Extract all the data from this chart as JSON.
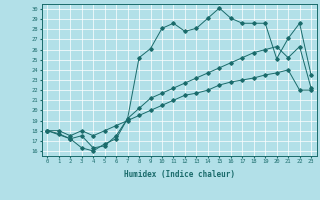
{
  "xlabel": "Humidex (Indice chaleur)",
  "xlim": [
    -0.5,
    23.5
  ],
  "ylim": [
    15.5,
    30.5
  ],
  "yticks": [
    16,
    17,
    18,
    19,
    20,
    21,
    22,
    23,
    24,
    25,
    26,
    27,
    28,
    29,
    30
  ],
  "xticks": [
    0,
    1,
    2,
    3,
    4,
    5,
    6,
    7,
    8,
    9,
    10,
    11,
    12,
    13,
    14,
    15,
    16,
    17,
    18,
    19,
    20,
    21,
    22,
    23
  ],
  "background_color": "#b2e0e8",
  "grid_color": "#ffffff",
  "line_color": "#1a6b6b",
  "line1_x": [
    0,
    1,
    2,
    3,
    4,
    5,
    6,
    7,
    8,
    9,
    10,
    11,
    12,
    13,
    14,
    15,
    16,
    17,
    18,
    19,
    20,
    21,
    22,
    23
  ],
  "line1_y": [
    18,
    17.7,
    17.2,
    16.3,
    16.0,
    16.7,
    17.2,
    19.2,
    25.2,
    26.1,
    28.1,
    28.6,
    27.8,
    28.1,
    29.1,
    30.1,
    29.1,
    28.6,
    28.6,
    28.6,
    25.1,
    27.1,
    28.6,
    23.5
  ],
  "line2_x": [
    0,
    2,
    3,
    4,
    5,
    6,
    7,
    8,
    9,
    10,
    11,
    12,
    13,
    14,
    15,
    16,
    17,
    18,
    19,
    20,
    21,
    22,
    23
  ],
  "line2_y": [
    18,
    17.2,
    17.5,
    16.3,
    16.5,
    17.5,
    19.2,
    20.2,
    21.2,
    21.7,
    22.2,
    22.7,
    23.2,
    23.7,
    24.2,
    24.7,
    25.2,
    25.7,
    26.0,
    26.3,
    25.2,
    26.3,
    22.2
  ],
  "line3_x": [
    0,
    1,
    2,
    3,
    4,
    5,
    6,
    7,
    8,
    9,
    10,
    11,
    12,
    13,
    14,
    15,
    16,
    17,
    18,
    19,
    20,
    21,
    22,
    23
  ],
  "line3_y": [
    18,
    18.0,
    17.5,
    18.0,
    17.5,
    18.0,
    18.5,
    19.0,
    19.5,
    20.0,
    20.5,
    21.0,
    21.5,
    21.7,
    22.0,
    22.5,
    22.8,
    23.0,
    23.2,
    23.5,
    23.7,
    24.0,
    22.0,
    22.0
  ]
}
